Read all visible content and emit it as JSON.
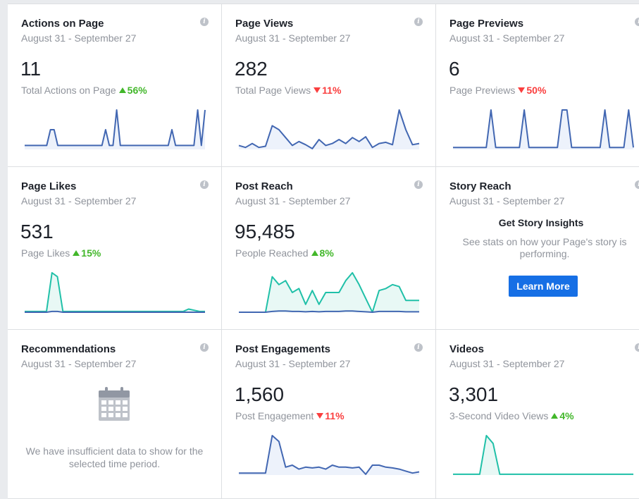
{
  "cards": [
    {
      "title": "Actions on Page",
      "date": "August 31 - September 27",
      "value": "11",
      "sub_label": "Total Actions on Page",
      "change": "56%",
      "direction": "up",
      "sparkline": {
        "primary": [
          0.1,
          0.1,
          0.1,
          0.1,
          0.1,
          0.1,
          0.1,
          0.5,
          0.5,
          0.1,
          0.1,
          0.1,
          0.1,
          0.1,
          0.1,
          0.1,
          0.1,
          0.1,
          0.1,
          0.1,
          0.1,
          0.1,
          0.5,
          0.1,
          0.1,
          1.0,
          0.1,
          0.1,
          0.1,
          0.1,
          0.1,
          0.1,
          0.1,
          0.1,
          0.1,
          0.1,
          0.1,
          0.1,
          0.1,
          0.1,
          0.5,
          0.1,
          0.1,
          0.1,
          0.1,
          0.1,
          0.1,
          1.0,
          0.1,
          1.0
        ],
        "secondary": null
      }
    },
    {
      "title": "Page Views",
      "date": "August 31 - September 27",
      "value": "282",
      "sub_label": "Total Page Views",
      "change": "11%",
      "direction": "down",
      "sparkline": {
        "primary": [
          0.1,
          0.05,
          0.15,
          0.05,
          0.08,
          0.6,
          0.5,
          0.3,
          0.1,
          0.2,
          0.12,
          0.02,
          0.25,
          0.1,
          0.15,
          0.25,
          0.15,
          0.3,
          0.2,
          0.32,
          0.05,
          0.15,
          0.18,
          0.12,
          1.0,
          0.5,
          0.12,
          0.15
        ],
        "secondary": null
      }
    },
    {
      "title": "Page Previews",
      "date": "August 31 - September 27",
      "value": "6",
      "sub_label": "Page Previews",
      "change": "50%",
      "direction": "down",
      "sparkline": {
        "primary": [
          0.05,
          0.05,
          0.05,
          0.05,
          0.05,
          0.05,
          0.05,
          0.05,
          1.0,
          0.05,
          0.05,
          0.05,
          0.05,
          0.05,
          0.05,
          1.0,
          0.05,
          0.05,
          0.05,
          0.05,
          0.05,
          0.05,
          0.05,
          1.0,
          1.0,
          0.05,
          0.05,
          0.05,
          0.05,
          0.05,
          0.05,
          0.05,
          1.0,
          0.05,
          0.05,
          0.05,
          0.05,
          1.0,
          0.05
        ],
        "secondary": null
      }
    },
    {
      "title": "Page Likes",
      "date": "August 31 - September 27",
      "value": "531",
      "sub_label": "Page Likes",
      "change": "15%",
      "direction": "up",
      "sparkline": {
        "primary": [
          0.02,
          0.02,
          0.02,
          0.02,
          0.02,
          1.0,
          0.9,
          0.02,
          0.02,
          0.02,
          0.02,
          0.02,
          0.02,
          0.02,
          0.02,
          0.02,
          0.02,
          0.02,
          0.02,
          0.02,
          0.02,
          0.02,
          0.02,
          0.02,
          0.02,
          0.02,
          0.02,
          0.02,
          0.02,
          0.02,
          0.08,
          0.05,
          0.02,
          0.02
        ],
        "secondary": [
          0.0,
          0.0,
          0.0,
          0.0,
          0.0,
          0.02,
          0.02,
          0.0,
          0.0,
          0.0,
          0.0,
          0.0,
          0.0,
          0.0,
          0.0,
          0.0,
          0.0,
          0.0,
          0.0,
          0.0,
          0.0,
          0.0,
          0.0,
          0.0,
          0.0,
          0.0,
          0.0,
          0.0,
          0.0,
          0.0,
          0.0,
          0.0,
          0.0,
          0.0
        ]
      }
    },
    {
      "title": "Post Reach",
      "date": "August 31 - September 27",
      "value": "95,485",
      "sub_label": "People Reached",
      "change": "8%",
      "direction": "up",
      "sparkline": {
        "primary": [
          0.0,
          0.0,
          0.0,
          0.0,
          0.0,
          0.9,
          0.7,
          0.8,
          0.5,
          0.6,
          0.2,
          0.55,
          0.2,
          0.5,
          0.5,
          0.5,
          0.8,
          1.0,
          0.7,
          0.35,
          0.0,
          0.55,
          0.6,
          0.7,
          0.65,
          0.3,
          0.3,
          0.3
        ],
        "secondary": [
          0.0,
          0.0,
          0.0,
          0.0,
          0.0,
          0.02,
          0.03,
          0.03,
          0.02,
          0.02,
          0.01,
          0.02,
          0.01,
          0.02,
          0.02,
          0.02,
          0.03,
          0.03,
          0.02,
          0.01,
          0.0,
          0.02,
          0.02,
          0.02,
          0.02,
          0.01,
          0.01,
          0.01
        ]
      }
    },
    {
      "title": "Story Reach",
      "date": "August 31 - September 27",
      "heading": "Get Story Insights",
      "text": "See stats on how your Page's story is performing.",
      "button": "Learn More"
    },
    {
      "title": "Recommendations",
      "date": "August 31 - September 27",
      "text": "We have insufficient data to show for the selected time period."
    },
    {
      "title": "Post Engagements",
      "date": "August 31 - September 27",
      "value": "1,560",
      "sub_label": "Post Engagement",
      "change": "11%",
      "direction": "down",
      "sparkline": {
        "primary": [
          0.05,
          0.05,
          0.05,
          0.05,
          0.05,
          1.0,
          0.85,
          0.2,
          0.25,
          0.15,
          0.2,
          0.18,
          0.2,
          0.15,
          0.25,
          0.2,
          0.2,
          0.18,
          0.2,
          0.02,
          0.25,
          0.25,
          0.2,
          0.18,
          0.15,
          0.1,
          0.05,
          0.08
        ],
        "secondary": null
      }
    },
    {
      "title": "Videos",
      "date": "August 31 - September 27",
      "value": "3,301",
      "sub_label": "3-Second Video Views",
      "change": "4%",
      "direction": "up",
      "sparkline": {
        "primary": [
          0.02,
          0.02,
          0.02,
          0.02,
          0.02,
          1.0,
          0.8,
          0.02,
          0.02,
          0.02,
          0.02,
          0.02,
          0.02,
          0.02,
          0.02,
          0.02,
          0.02,
          0.02,
          0.02,
          0.02,
          0.02,
          0.02,
          0.02,
          0.02,
          0.02,
          0.02,
          0.02,
          0.02
        ],
        "secondary": null
      }
    }
  ],
  "colors": {
    "blue_line": "#4267b2",
    "blue_fill": "#edf2fb",
    "teal_line": "#20c0a8",
    "teal_fill": "#e8f8f5",
    "up": "#42b72a",
    "down": "#fa3e3e",
    "button": "#166fe5"
  },
  "info_icon_label": "i"
}
